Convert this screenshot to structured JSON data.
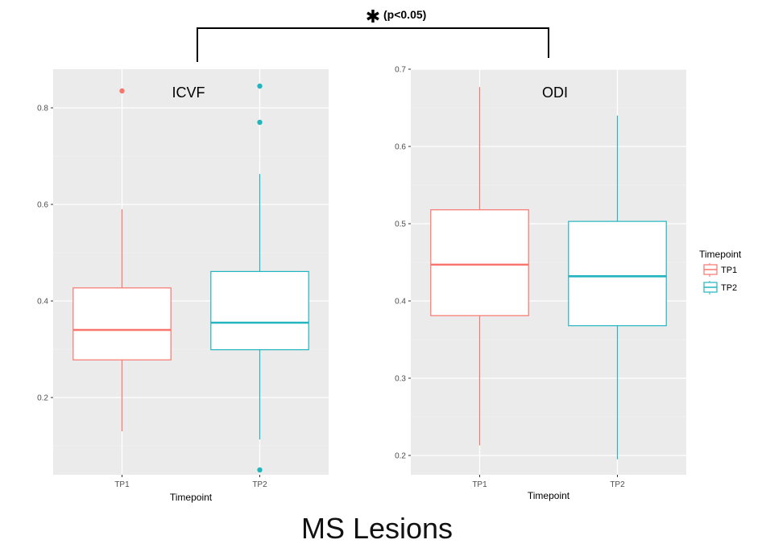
{
  "significance": {
    "marker": "✱",
    "label": "(p<0.05)"
  },
  "caption": "MS Lesions",
  "legend": {
    "title": "Timepoint",
    "entries": [
      {
        "label": "TP1",
        "color": "#F8766D"
      },
      {
        "label": "TP2",
        "color": "#22B5C0"
      }
    ]
  },
  "chart_data": [
    {
      "type": "boxplot",
      "title": "ICVF",
      "xlabel": "Timepoint",
      "ylabel": "",
      "categories": [
        "TP1",
        "TP2"
      ],
      "ylim": [
        0.04,
        0.88
      ],
      "yticks": [
        0.2,
        0.4,
        0.6,
        0.8
      ],
      "yticklabels": [
        "0.2",
        "0.4",
        "0.6",
        "0.8"
      ],
      "boxes": [
        {
          "category": "TP1",
          "whisker_low": 0.13,
          "q1": 0.278,
          "median": 0.34,
          "q3": 0.427,
          "whisker_high": 0.59,
          "outliers": [
            0.835
          ]
        },
        {
          "category": "TP2",
          "whisker_low": 0.113,
          "q1": 0.299,
          "median": 0.355,
          "q3": 0.461,
          "whisker_high": 0.663,
          "outliers": [
            0.845,
            0.77,
            0.05
          ]
        }
      ]
    },
    {
      "type": "boxplot",
      "title": "ODI",
      "xlabel": "Timepoint",
      "ylabel": "",
      "categories": [
        "TP1",
        "TP2"
      ],
      "ylim": [
        0.175,
        0.7
      ],
      "yticks": [
        0.2,
        0.3,
        0.4,
        0.5,
        0.6,
        0.7
      ],
      "yticklabels": [
        "0.2",
        "0.3",
        "0.4",
        "0.5",
        "0.6",
        "0.7"
      ],
      "boxes": [
        {
          "category": "TP1",
          "whisker_low": 0.213,
          "q1": 0.381,
          "median": 0.447,
          "q3": 0.518,
          "whisker_high": 0.677,
          "outliers": []
        },
        {
          "category": "TP2",
          "whisker_low": 0.195,
          "q1": 0.368,
          "median": 0.432,
          "q3": 0.503,
          "whisker_high": 0.64,
          "outliers": []
        }
      ]
    }
  ]
}
